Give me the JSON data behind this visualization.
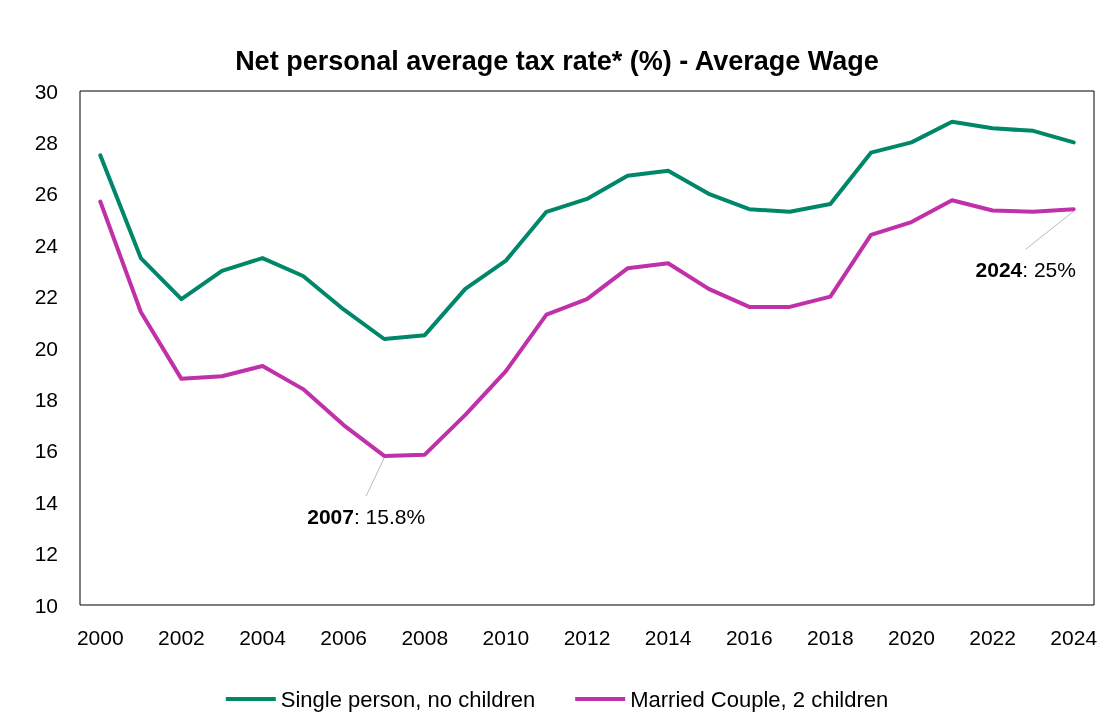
{
  "chart_data": {
    "type": "line",
    "title": "Net personal average tax rate* (%) - Average Wage",
    "x": [
      2000,
      2001,
      2002,
      2003,
      2004,
      2005,
      2006,
      2007,
      2008,
      2009,
      2010,
      2011,
      2012,
      2013,
      2014,
      2015,
      2016,
      2017,
      2018,
      2019,
      2020,
      2021,
      2022,
      2023,
      2024
    ],
    "series": [
      {
        "name": "Single person, no children",
        "color": "#00876a",
        "values": [
          27.5,
          23.5,
          21.9,
          23.0,
          23.5,
          22.8,
          21.5,
          20.35,
          20.5,
          22.3,
          23.4,
          25.3,
          25.8,
          26.7,
          26.9,
          26.0,
          25.4,
          25.3,
          25.6,
          27.6,
          28.0,
          28.8,
          28.55,
          28.45,
          28.0
        ]
      },
      {
        "name": "Married Couple, 2 children",
        "color": "#c030a8",
        "values": [
          25.7,
          21.4,
          18.8,
          18.9,
          19.3,
          18.4,
          17.0,
          15.8,
          15.85,
          17.4,
          19.1,
          21.3,
          21.9,
          23.1,
          23.3,
          22.3,
          21.6,
          21.6,
          22.0,
          24.4,
          24.9,
          25.75,
          25.35,
          25.3,
          25.4
        ]
      }
    ],
    "xlim": [
      1999.5,
      2024.5
    ],
    "xticks": [
      2000,
      2002,
      2004,
      2006,
      2008,
      2010,
      2012,
      2014,
      2016,
      2018,
      2020,
      2022,
      2024
    ],
    "ylim": [
      10,
      30
    ],
    "yticks": [
      10,
      12,
      14,
      16,
      18,
      20,
      22,
      24,
      26,
      28,
      30
    ],
    "annotations": [
      {
        "text": "2007: 15.8%",
        "x": 2007,
        "y": 15.8
      },
      {
        "text": "2024: 25%",
        "x": 2024,
        "y": 25.4
      }
    ],
    "grid": false,
    "legend": "bottom",
    "marker": "none",
    "line_style": "solid"
  }
}
